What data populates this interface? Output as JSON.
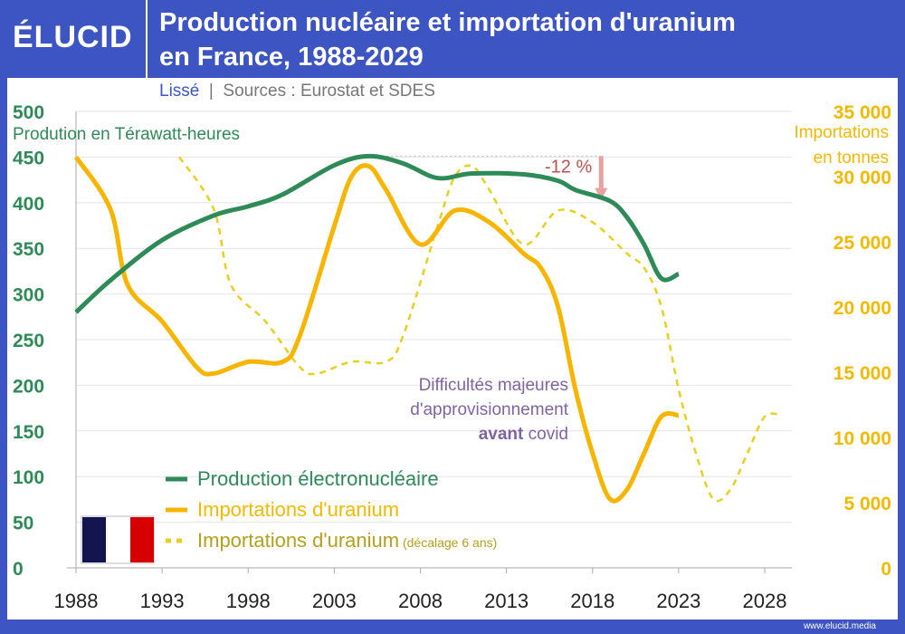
{
  "header": {
    "logo": "ÉLUCID",
    "title_line1": "Production nucléaire et importation d'uranium",
    "title_line2": "en France, 1988-2029",
    "subtitle_mode": "Lissé",
    "subtitle_sources": "Sources : Eurostat et SDES",
    "footer": "www.elucid.media"
  },
  "chart_data": {
    "type": "line",
    "title": "Production nucléaire et importation d'uranium en France, 1988-2029",
    "ylabel": "Prodution en Térawatt-heures",
    "y2label_line1": "Importations",
    "y2label_line2": "en tonnes",
    "xlim": [
      1988,
      2029.5
    ],
    "ylim": [
      0,
      500
    ],
    "y2lim": [
      0,
      35000
    ],
    "xticks": [
      "1988",
      "1993",
      "1998",
      "2003",
      "2008",
      "2013",
      "2018",
      "2023",
      "2028"
    ],
    "yticks": [
      "0",
      "50",
      "100",
      "150",
      "200",
      "250",
      "300",
      "350",
      "400",
      "450",
      "500"
    ],
    "y2ticks": [
      "0",
      "5 000",
      "10 000",
      "15 000",
      "20 000",
      "25 000",
      "30 000",
      "35 000"
    ],
    "colors": {
      "production": "#2e8b57",
      "imports": "#f7b500",
      "shifted": "#e8d020"
    },
    "series": [
      {
        "name": "Production électronucléaire",
        "axis": "left",
        "x": [
          1988,
          1990,
          1993,
          1996,
          1998,
          2000,
          2003,
          2005,
          2007,
          2009,
          2011,
          2014,
          2016,
          2017,
          2019,
          2020,
          2021,
          2022,
          2023
        ],
        "values": [
          280,
          315,
          359,
          386,
          396,
          409,
          441,
          451,
          443,
          427,
          432,
          431,
          424,
          414,
          402,
          384,
          354,
          317,
          322
        ]
      },
      {
        "name": "Importations d'uranium",
        "axis": "right",
        "x": [
          1988,
          1990,
          1991,
          1993,
          1995,
          1996,
          1998,
          2000,
          2001,
          2003,
          2004,
          2005,
          2006,
          2008,
          2010,
          2012,
          2014,
          2015,
          2016,
          2017,
          2018,
          2019,
          2020,
          2021,
          2022,
          2023
        ],
        "values": [
          31500,
          27500,
          21700,
          18900,
          15400,
          14900,
          15800,
          15800,
          17800,
          26200,
          30000,
          30800,
          29000,
          24800,
          27400,
          26500,
          24100,
          23000,
          20000,
          13700,
          8800,
          5300,
          6000,
          8800,
          11600,
          11700
        ]
      },
      {
        "name": "Importations d'uranium",
        "note": "(décalage 6 ans)",
        "axis": "right",
        "shift_years": 6,
        "dashed": true
      }
    ],
    "annotations": {
      "drop": "-12 %",
      "text_line1": "Difficultés majeures",
      "text_line2": "d'approvisionnement",
      "text_bold": "avant",
      "text_rest": "covid"
    }
  }
}
